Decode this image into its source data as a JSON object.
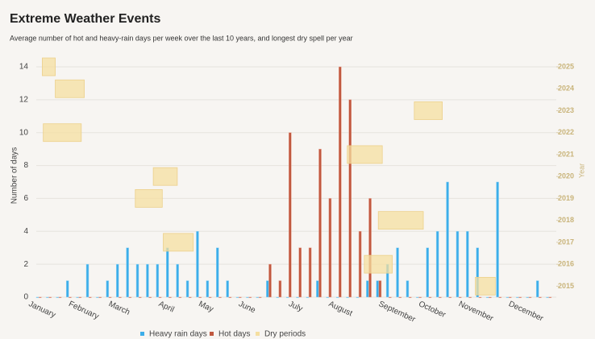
{
  "chart_data": {
    "type": "bar",
    "title": "Extreme Weather Events",
    "subtitle": "Average number of hot and heavy-rain days per week over the last 10 years, and longest dry spell per year",
    "ylabel": "Number of days",
    "y2label": "Year",
    "categories": [
      "January",
      null,
      null,
      null,
      "February",
      null,
      null,
      null,
      "March",
      null,
      null,
      null,
      null,
      "April",
      null,
      null,
      null,
      "May",
      null,
      null,
      null,
      "June",
      null,
      null,
      null,
      null,
      "July",
      null,
      null,
      null,
      "August",
      null,
      null,
      null,
      null,
      "September",
      null,
      null,
      null,
      "October",
      null,
      null,
      null,
      "November",
      null,
      null,
      null,
      null,
      "December",
      null,
      null,
      null
    ],
    "series": [
      {
        "name": "Heavy rain days",
        "color": "#3daee9",
        "values": [
          0,
          0,
          0,
          1,
          0,
          2,
          0,
          1,
          2,
          3,
          2,
          2,
          2,
          3,
          2,
          1,
          4,
          1,
          3,
          1,
          0,
          0,
          0,
          1,
          0,
          0,
          0,
          0,
          1,
          0,
          0,
          0,
          0,
          1,
          1,
          2,
          3,
          1,
          0,
          3,
          4,
          7,
          4,
          4,
          3,
          0,
          7,
          0,
          0,
          0,
          1,
          0
        ]
      },
      {
        "name": "Hot days",
        "color": "#c0583f",
        "values": [
          0,
          0,
          0,
          0,
          0,
          0,
          0,
          0,
          0,
          0,
          0,
          0,
          0,
          0,
          0,
          0,
          0,
          0,
          0,
          0,
          0,
          0,
          0,
          2,
          1,
          10,
          3,
          3,
          9,
          6,
          14,
          12,
          4,
          6,
          1,
          0,
          0,
          0,
          0,
          0,
          0,
          0,
          0,
          0,
          0,
          0,
          0,
          0,
          0,
          0,
          0,
          0
        ]
      },
      {
        "name": "Dry periods",
        "color": "#f5dfa0",
        "axis": "y2",
        "periods": [
          {
            "year": 2025,
            "start": 0.6,
            "end": 1.9
          },
          {
            "year": 2024,
            "start": 1.9,
            "end": 4.8
          },
          {
            "year": 2023,
            "start": 37.8,
            "end": 40.6
          },
          {
            "year": 2022,
            "start": 0.7,
            "end": 4.5
          },
          {
            "year": 2021,
            "start": 31.1,
            "end": 34.6
          },
          {
            "year": 2020,
            "start": 11.7,
            "end": 14.1
          },
          {
            "year": 2019,
            "start": 9.9,
            "end": 12.6
          },
          {
            "year": 2018,
            "start": 34.2,
            "end": 38.7
          },
          {
            "year": 2017,
            "start": 12.7,
            "end": 15.7
          },
          {
            "year": 2016,
            "start": 32.8,
            "end": 35.6
          },
          {
            "year": 2015,
            "start": 43.9,
            "end": 45.9
          }
        ]
      }
    ],
    "ylim": [
      0,
      14
    ],
    "yticks": [
      0,
      2,
      4,
      6,
      8,
      10,
      12,
      14
    ],
    "y2lim": [
      2014.5,
      2025
    ],
    "y2ticks": [
      2015,
      2016,
      2017,
      2018,
      2019,
      2020,
      2021,
      2022,
      2023,
      2024,
      2025
    ],
    "grid": true,
    "legend": "bottom"
  }
}
